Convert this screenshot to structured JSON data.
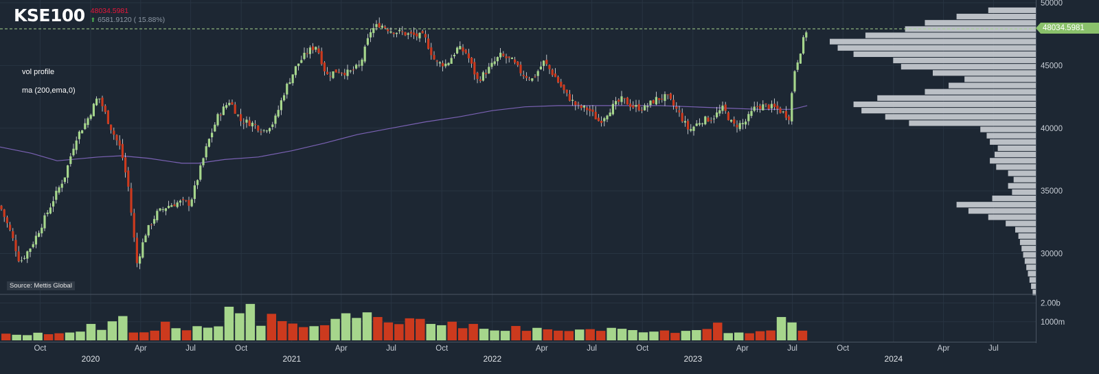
{
  "header": {
    "symbol": "KSE100",
    "last": "48034.5981",
    "change": "6581.9120 ( 15.88%)"
  },
  "indicators": [
    "vol profile",
    "ma (200,ema,0)"
  ],
  "source": "Source: Mettis Global",
  "price_tag": "48034.5981",
  "colors": {
    "up": "#a6d68c",
    "down": "#cc3a1e",
    "ma": "#7b62b5",
    "profile": "#c9cdd3",
    "tag": "#8ac16b"
  },
  "chart_data": {
    "type": "candlestick",
    "title": "KSE100",
    "last_price": 48034.5981,
    "ylim": [
      26800,
      50000
    ],
    "y_ticks": [
      30000,
      35000,
      40000,
      45000,
      50000
    ],
    "volume_ticks": [
      {
        "label": "1000m",
        "value": 1000
      },
      {
        "label": "2.00b",
        "value": 2000
      }
    ],
    "volume_ylim": [
      0,
      2350
    ],
    "x_ticks": [
      {
        "label": "Oct",
        "date": "2019-10-01",
        "row": "month"
      },
      {
        "label": "2020",
        "date": "2020-01-01",
        "row": "year"
      },
      {
        "label": "Apr",
        "date": "2020-04-01",
        "row": "month"
      },
      {
        "label": "Jul",
        "date": "2020-07-01",
        "row": "month"
      },
      {
        "label": "Oct",
        "date": "2020-10-01",
        "row": "month"
      },
      {
        "label": "2021",
        "date": "2021-01-01",
        "row": "year"
      },
      {
        "label": "Apr",
        "date": "2021-04-01",
        "row": "month"
      },
      {
        "label": "Jul",
        "date": "2021-07-01",
        "row": "month"
      },
      {
        "label": "Oct",
        "date": "2021-10-01",
        "row": "month"
      },
      {
        "label": "2022",
        "date": "2022-01-01",
        "row": "year"
      },
      {
        "label": "Apr",
        "date": "2022-04-01",
        "row": "month"
      },
      {
        "label": "Jul",
        "date": "2022-07-01",
        "row": "month"
      },
      {
        "label": "Oct",
        "date": "2022-10-01",
        "row": "month"
      },
      {
        "label": "2023",
        "date": "2023-01-01",
        "row": "year"
      },
      {
        "label": "Apr",
        "date": "2023-04-01",
        "row": "month"
      },
      {
        "label": "Jul",
        "date": "2023-07-01",
        "row": "month"
      },
      {
        "label": "Oct",
        "date": "2023-10-01",
        "row": "month"
      },
      {
        "label": "2024",
        "date": "2024-01-01",
        "row": "year"
      },
      {
        "label": "Apr",
        "date": "2024-04-01",
        "row": "month"
      },
      {
        "label": "Jul",
        "date": "2024-07-01",
        "row": "month"
      }
    ],
    "x_range": [
      "2019-07-20",
      "2024-09-05"
    ],
    "series": [
      {
        "name": "close",
        "points": [
          [
            "2019-07-20",
            33800
          ],
          [
            "2019-08-10",
            31500
          ],
          [
            "2019-08-25",
            29300
          ],
          [
            "2019-09-15",
            30600
          ],
          [
            "2019-10-05",
            32400
          ],
          [
            "2019-10-25",
            34300
          ],
          [
            "2019-11-15",
            36200
          ],
          [
            "2019-12-05",
            39200
          ],
          [
            "2019-12-25",
            40600
          ],
          [
            "2020-01-15",
            42600
          ],
          [
            "2020-02-05",
            40200
          ],
          [
            "2020-02-25",
            38300
          ],
          [
            "2020-03-10",
            35200
          ],
          [
            "2020-03-25",
            29200
          ],
          [
            "2020-04-10",
            31600
          ],
          [
            "2020-04-30",
            33200
          ],
          [
            "2020-05-20",
            33800
          ],
          [
            "2020-06-10",
            34100
          ],
          [
            "2020-06-30",
            34000
          ],
          [
            "2020-07-15",
            36200
          ],
          [
            "2020-08-01",
            38800
          ],
          [
            "2020-08-20",
            41000
          ],
          [
            "2020-09-10",
            42200
          ],
          [
            "2020-09-30",
            40600
          ],
          [
            "2020-10-20",
            40400
          ],
          [
            "2020-11-10",
            39800
          ],
          [
            "2020-11-30",
            40500
          ],
          [
            "2020-12-20",
            43100
          ],
          [
            "2021-01-10",
            45000
          ],
          [
            "2021-01-30",
            46100
          ],
          [
            "2021-02-15",
            46600
          ],
          [
            "2021-03-05",
            44200
          ],
          [
            "2021-03-25",
            44600
          ],
          [
            "2021-04-15",
            44400
          ],
          [
            "2021-05-05",
            45000
          ],
          [
            "2021-05-25",
            47800
          ],
          [
            "2021-06-10",
            48300
          ],
          [
            "2021-06-30",
            47800
          ],
          [
            "2021-07-20",
            47600
          ],
          [
            "2021-08-10",
            47400
          ],
          [
            "2021-08-30",
            47300
          ],
          [
            "2021-09-20",
            45200
          ],
          [
            "2021-10-10",
            45100
          ],
          [
            "2021-10-30",
            46400
          ],
          [
            "2021-11-15",
            46000
          ],
          [
            "2021-12-05",
            43800
          ],
          [
            "2021-12-25",
            44700
          ],
          [
            "2022-01-15",
            45800
          ],
          [
            "2022-02-05",
            45400
          ],
          [
            "2022-02-25",
            44300
          ],
          [
            "2022-03-15",
            43900
          ],
          [
            "2022-04-05",
            45300
          ],
          [
            "2022-04-25",
            44100
          ],
          [
            "2022-05-15",
            42700
          ],
          [
            "2022-06-05",
            41700
          ],
          [
            "2022-06-25",
            41500
          ],
          [
            "2022-07-15",
            40500
          ],
          [
            "2022-08-05",
            41600
          ],
          [
            "2022-08-25",
            42300
          ],
          [
            "2022-09-15",
            41700
          ],
          [
            "2022-10-05",
            41600
          ],
          [
            "2022-10-25",
            42300
          ],
          [
            "2022-11-15",
            42500
          ],
          [
            "2022-12-05",
            41300
          ],
          [
            "2022-12-25",
            39800
          ],
          [
            "2023-01-15",
            40600
          ],
          [
            "2023-02-05",
            40800
          ],
          [
            "2023-02-25",
            41600
          ],
          [
            "2023-03-15",
            40200
          ],
          [
            "2023-04-05",
            40400
          ],
          [
            "2023-04-25",
            41700
          ],
          [
            "2023-05-15",
            41800
          ],
          [
            "2023-06-05",
            41500
          ],
          [
            "2023-06-25",
            40900
          ],
          [
            "2023-07-05",
            44600
          ],
          [
            "2023-07-15",
            46100
          ],
          [
            "2023-07-28",
            48034.6
          ]
        ]
      },
      {
        "name": "ma (200,ema,0)",
        "points": [
          [
            "2019-07-20",
            38500
          ],
          [
            "2019-09-15",
            38000
          ],
          [
            "2019-11-01",
            37400
          ],
          [
            "2020-01-15",
            37700
          ],
          [
            "2020-02-25",
            37800
          ],
          [
            "2020-04-15",
            37600
          ],
          [
            "2020-06-15",
            37200
          ],
          [
            "2020-07-15",
            37200
          ],
          [
            "2020-09-01",
            37500
          ],
          [
            "2020-11-01",
            37700
          ],
          [
            "2021-01-01",
            38200
          ],
          [
            "2021-03-01",
            38800
          ],
          [
            "2021-05-01",
            39500
          ],
          [
            "2021-07-01",
            40000
          ],
          [
            "2021-09-01",
            40500
          ],
          [
            "2021-11-01",
            40900
          ],
          [
            "2022-01-01",
            41400
          ],
          [
            "2022-03-01",
            41700
          ],
          [
            "2022-05-01",
            41800
          ],
          [
            "2022-07-01",
            41800
          ],
          [
            "2022-09-01",
            41800
          ],
          [
            "2022-11-01",
            41800
          ],
          [
            "2023-01-01",
            41700
          ],
          [
            "2023-03-01",
            41600
          ],
          [
            "2023-05-01",
            41500
          ],
          [
            "2023-07-01",
            41500
          ],
          [
            "2023-07-28",
            41800
          ]
        ]
      }
    ],
    "volume_profile": [
      [
        26900,
        4
      ],
      [
        27400,
        6
      ],
      [
        27900,
        8
      ],
      [
        28400,
        10
      ],
      [
        28900,
        12
      ],
      [
        29400,
        14
      ],
      [
        29900,
        16
      ],
      [
        30400,
        18
      ],
      [
        30900,
        20
      ],
      [
        31400,
        22
      ],
      [
        31900,
        26
      ],
      [
        32400,
        38
      ],
      [
        32900,
        60
      ],
      [
        33400,
        85
      ],
      [
        33900,
        100
      ],
      [
        34400,
        55
      ],
      [
        34900,
        30
      ],
      [
        35400,
        35
      ],
      [
        35900,
        28
      ],
      [
        36400,
        35
      ],
      [
        36900,
        50
      ],
      [
        37400,
        58
      ],
      [
        37900,
        52
      ],
      [
        38400,
        48
      ],
      [
        38900,
        58
      ],
      [
        39400,
        62
      ],
      [
        39900,
        70
      ],
      [
        40400,
        160
      ],
      [
        40900,
        190
      ],
      [
        41400,
        220
      ],
      [
        41900,
        230
      ],
      [
        42400,
        200
      ],
      [
        42900,
        140
      ],
      [
        43400,
        110
      ],
      [
        43900,
        90
      ],
      [
        44400,
        130
      ],
      [
        44900,
        170
      ],
      [
        45400,
        180
      ],
      [
        45900,
        230
      ],
      [
        46400,
        250
      ],
      [
        46900,
        260
      ],
      [
        47400,
        215
      ],
      [
        47900,
        165
      ],
      [
        48400,
        140
      ],
      [
        48900,
        100
      ],
      [
        49400,
        60
      ]
    ],
    "volume": [
      [
        360,
        0
      ],
      [
        300,
        1
      ],
      [
        280,
        1
      ],
      [
        410,
        1
      ],
      [
        330,
        0
      ],
      [
        380,
        0
      ],
      [
        420,
        1
      ],
      [
        470,
        1
      ],
      [
        880,
        1
      ],
      [
        560,
        1
      ],
      [
        1020,
        1
      ],
      [
        1300,
        1
      ],
      [
        420,
        0
      ],
      [
        430,
        0
      ],
      [
        520,
        0
      ],
      [
        1000,
        0
      ],
      [
        650,
        1
      ],
      [
        540,
        0
      ],
      [
        760,
        1
      ],
      [
        680,
        1
      ],
      [
        750,
        1
      ],
      [
        1800,
        1
      ],
      [
        1450,
        1
      ],
      [
        1950,
        1
      ],
      [
        780,
        1
      ],
      [
        1420,
        0
      ],
      [
        1030,
        0
      ],
      [
        900,
        0
      ],
      [
        710,
        0
      ],
      [
        760,
        1
      ],
      [
        810,
        0
      ],
      [
        1150,
        1
      ],
      [
        1450,
        1
      ],
      [
        1200,
        1
      ],
      [
        1500,
        1
      ],
      [
        1250,
        0
      ],
      [
        960,
        0
      ],
      [
        870,
        0
      ],
      [
        1180,
        0
      ],
      [
        1150,
        0
      ],
      [
        880,
        1
      ],
      [
        810,
        1
      ],
      [
        1000,
        0
      ],
      [
        650,
        0
      ],
      [
        880,
        0
      ],
      [
        620,
        1
      ],
      [
        530,
        1
      ],
      [
        510,
        1
      ],
      [
        770,
        0
      ],
      [
        510,
        0
      ],
      [
        670,
        1
      ],
      [
        590,
        0
      ],
      [
        520,
        0
      ],
      [
        500,
        0
      ],
      [
        580,
        1
      ],
      [
        600,
        0
      ],
      [
        510,
        0
      ],
      [
        670,
        1
      ],
      [
        620,
        1
      ],
      [
        550,
        1
      ],
      [
        430,
        1
      ],
      [
        470,
        1
      ],
      [
        530,
        0
      ],
      [
        400,
        0
      ],
      [
        510,
        1
      ],
      [
        550,
        1
      ],
      [
        610,
        0
      ],
      [
        950,
        0
      ],
      [
        390,
        1
      ],
      [
        420,
        1
      ],
      [
        380,
        0
      ],
      [
        490,
        0
      ],
      [
        530,
        0
      ],
      [
        1250,
        1
      ],
      [
        960,
        1
      ],
      [
        520,
        0
      ]
    ]
  }
}
